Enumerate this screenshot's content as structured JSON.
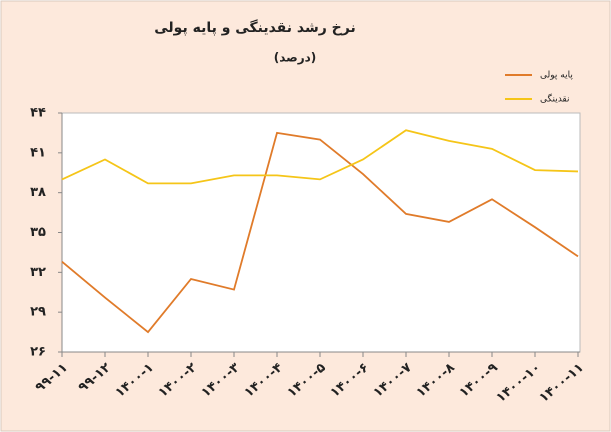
{
  "chart_data": {
    "type": "line",
    "title": "نرخ رشد نقدینگی و پایه پولی",
    "subtitle": "(درصد)",
    "categories": [
      "۹۹-۱۱",
      "۹۹-۱۲",
      "۱۴۰۰-۱",
      "۱۴۰۰-۲",
      "۱۴۰۰-۳",
      "۱۴۰۰-۴",
      "۱۴۰۰-۵",
      "۱۴۰۰-۶",
      "۱۴۰۰-۷",
      "۱۴۰۰-۸",
      "۱۴۰۰-۹",
      "۱۴۰۰-۱۰",
      "۱۴۰۰-۱۱"
    ],
    "series": [
      {
        "name": "پایه پولی",
        "color": "#e07b2a",
        "values": [
          32.8,
          30.1,
          27.5,
          31.5,
          30.7,
          42.5,
          42.0,
          39.4,
          36.4,
          35.8,
          37.5,
          35.4,
          33.2
        ]
      },
      {
        "name": "نقدینگی",
        "color": "#f5c518",
        "values": [
          39.0,
          40.5,
          38.7,
          38.7,
          39.3,
          39.3,
          39.0,
          40.5,
          42.7,
          41.9,
          41.3,
          39.7,
          39.6
        ]
      }
    ],
    "ylim": [
      26,
      44
    ],
    "yticks": [
      {
        "value": 26,
        "label": "۲۶"
      },
      {
        "value": 29,
        "label": "۲۹"
      },
      {
        "value": 32,
        "label": "۳۲"
      },
      {
        "value": 35,
        "label": "۳۵"
      },
      {
        "value": 38,
        "label": "۳۸"
      },
      {
        "value": 41,
        "label": "۴۱"
      },
      {
        "value": 44,
        "label": "۴۴"
      }
    ],
    "grid": false
  }
}
